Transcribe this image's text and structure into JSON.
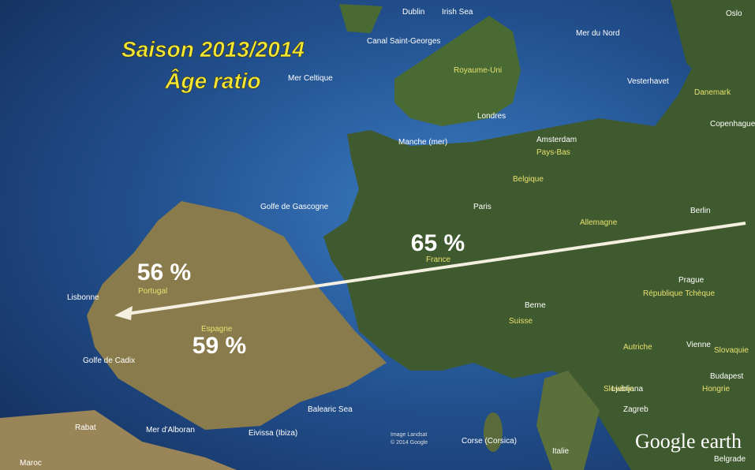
{
  "title": {
    "line1": "Saison 2013/2014",
    "line2": "Âge ratio"
  },
  "ratios": [
    "65 %",
    "56 %",
    "59 %"
  ],
  "places": [
    "Dublin",
    "Irish Sea",
    "Mer Celtique",
    "Canal Saint-Georges",
    "Royaume-Uni",
    "Londres",
    "Manche (mer)",
    "Amsterdam",
    "Pays-Bas",
    "Belgique",
    "Paris",
    "Golfe de Gascogne",
    "Mer du Nord",
    "Oslo",
    "Vesterhavet",
    "Danemark",
    "Copenhague",
    "Berlin",
    "Allemagne",
    "France",
    "Prague",
    "République Tchèque",
    "Berne",
    "Suisse",
    "Autriche",
    "Vienne",
    "Slovaquie",
    "Budapest",
    "Hongrie",
    "Ljubljana",
    "Zagreb",
    "Slovénie",
    "Portugal",
    "Lisbonne",
    "Espagne",
    "Golfe de Cadix",
    "Rabat",
    "Maroc",
    "Mer d'Alboran",
    "Balearic Sea",
    "Eivissa (Ibiza)",
    "Corse (Corsica)",
    "Italie",
    "Belgrade"
  ],
  "credits": [
    "Image Landsat",
    "© 2014 Google"
  ],
  "logo": "Google earth"
}
